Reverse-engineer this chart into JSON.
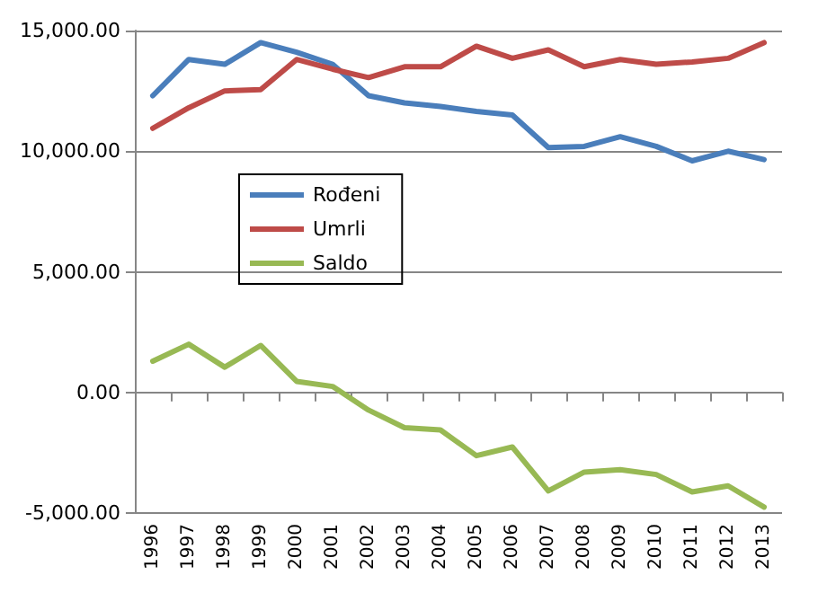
{
  "chart_data": {
    "type": "line",
    "categories": [
      "1996",
      "1997",
      "1998",
      "1999",
      "2000",
      "2001",
      "2002",
      "2003",
      "2004",
      "2005",
      "2006",
      "2007",
      "2008",
      "2009",
      "2010",
      "2011",
      "2012",
      "2013"
    ],
    "series": [
      {
        "name": "Rođeni",
        "color": "#4a7ebb",
        "values": [
          12300,
          13800,
          13600,
          14500,
          14100,
          13600,
          12300,
          12000,
          11850,
          11650,
          11500,
          10150,
          10200,
          10600,
          10200,
          9600,
          10000,
          9650
        ]
      },
      {
        "name": "Umrli",
        "color": "#be4b48",
        "values": [
          10950,
          11800,
          12500,
          12550,
          13800,
          13400,
          13050,
          13500,
          13500,
          14350,
          13850,
          14200,
          13500,
          13800,
          13600,
          13700,
          13850,
          14500
        ]
      },
      {
        "name": "Saldo",
        "color": "#98b954",
        "values": [
          1300,
          2000,
          1050,
          1950,
          460,
          250,
          -730,
          -1460,
          -1550,
          -2620,
          -2260,
          -4080,
          -3300,
          -3200,
          -3400,
          -4120,
          -3870,
          -4750
        ]
      }
    ],
    "ylim": [
      -5000,
      15000
    ],
    "yticks": [
      {
        "value": -5000,
        "label": "-5,000.00"
      },
      {
        "value": 0,
        "label": "0.00"
      },
      {
        "value": 5000,
        "label": "5,000.00"
      },
      {
        "value": 10000,
        "label": "10,000.00"
      },
      {
        "value": 15000,
        "label": "15,000.00"
      }
    ],
    "grid": "y",
    "legend": "left",
    "marker": "none",
    "line_style": "solid"
  }
}
